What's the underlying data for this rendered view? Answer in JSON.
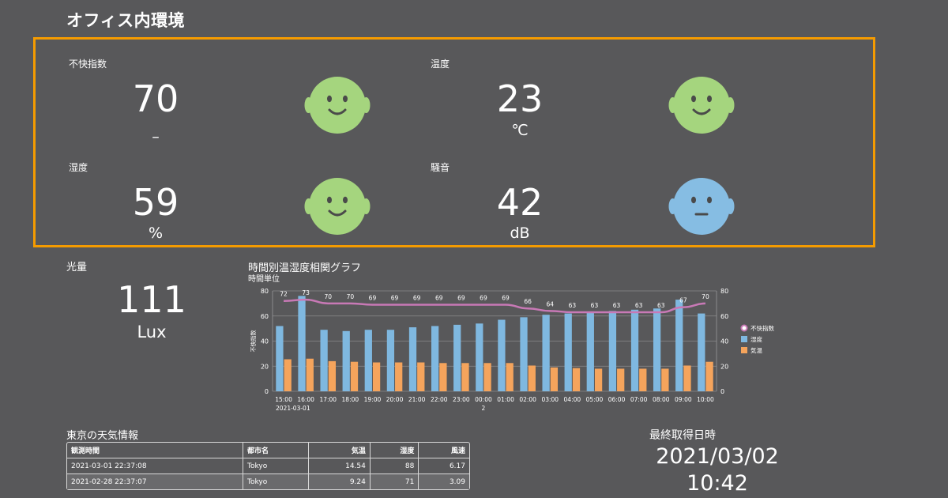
{
  "page": {
    "title": "オフィス内環境"
  },
  "metrics": {
    "discomfort": {
      "label": "不快指数",
      "value": "70",
      "unit": "–",
      "face": "smile",
      "color": "#a5d57e"
    },
    "temperature": {
      "label": "温度",
      "value": "23",
      "unit": "℃",
      "face": "smile",
      "color": "#a5d57e"
    },
    "humidity": {
      "label": "湿度",
      "value": "59",
      "unit": "%",
      "face": "smile",
      "color": "#a5d57e"
    },
    "noise": {
      "label": "騒音",
      "value": "42",
      "unit": "dB",
      "face": "neutral",
      "color": "#86bde3"
    }
  },
  "light": {
    "label": "光量",
    "value": "111",
    "unit": "Lux"
  },
  "chart": {
    "title": "時間別温湿度相関グラフ",
    "subtitle": "時間単位"
  },
  "chart_data": {
    "type": "bar",
    "categories": [
      "15:00",
      "16:00",
      "17:00",
      "18:00",
      "19:00",
      "20:00",
      "21:00",
      "22:00",
      "23:00",
      "00:00",
      "01:00",
      "02:00",
      "03:00",
      "04:00",
      "05:00",
      "06:00",
      "07:00",
      "08:00",
      "09:00",
      "10:00"
    ],
    "date_labels": {
      "0": "2021-03-01",
      "9": "2"
    },
    "series": [
      {
        "name": "不快指数",
        "kind": "line",
        "color": "#c879b6",
        "values": [
          72,
          73,
          70,
          70,
          69,
          69,
          69,
          69,
          69,
          69,
          69,
          66,
          64,
          63,
          63,
          63,
          63,
          63,
          67,
          70
        ]
      },
      {
        "name": "湿度",
        "kind": "bar",
        "color": "#7fb8e0",
        "values": [
          52,
          76,
          49,
          48,
          49,
          49,
          51,
          52,
          53,
          54,
          57,
          59,
          61,
          62,
          63,
          64,
          65,
          66,
          73,
          62
        ]
      },
      {
        "name": "気温",
        "kind": "bar",
        "color": "#f5a45c",
        "values": [
          25.5,
          26,
          24,
          23.5,
          23,
          23,
          23,
          22.5,
          22.5,
          22.5,
          22.5,
          20.5,
          19,
          18.5,
          18,
          18,
          18,
          18,
          20.5,
          23.5
        ]
      }
    ],
    "ylabel": "不快指数",
    "ylim": [
      0,
      80
    ],
    "y_ticks": [
      "0",
      "20",
      "40",
      "60",
      "80"
    ],
    "y2_ticks": [
      "0",
      "20",
      "40",
      "60",
      "80"
    ],
    "grid": true,
    "legend": "right"
  },
  "weather": {
    "title": "東京の天気情報",
    "headers": [
      "観測時間",
      "都市名",
      "気温",
      "湿度",
      "風速"
    ],
    "rows": [
      [
        "2021-03-01 22:37:08",
        "Tokyo",
        "14.54",
        "88",
        "6.17"
      ],
      [
        "2021-02-28 22:37:07",
        "Tokyo",
        "9.24",
        "71",
        "3.09"
      ]
    ]
  },
  "last_fetch": {
    "label": "最終取得日時",
    "date": "2021/03/02",
    "time": "10:42"
  }
}
